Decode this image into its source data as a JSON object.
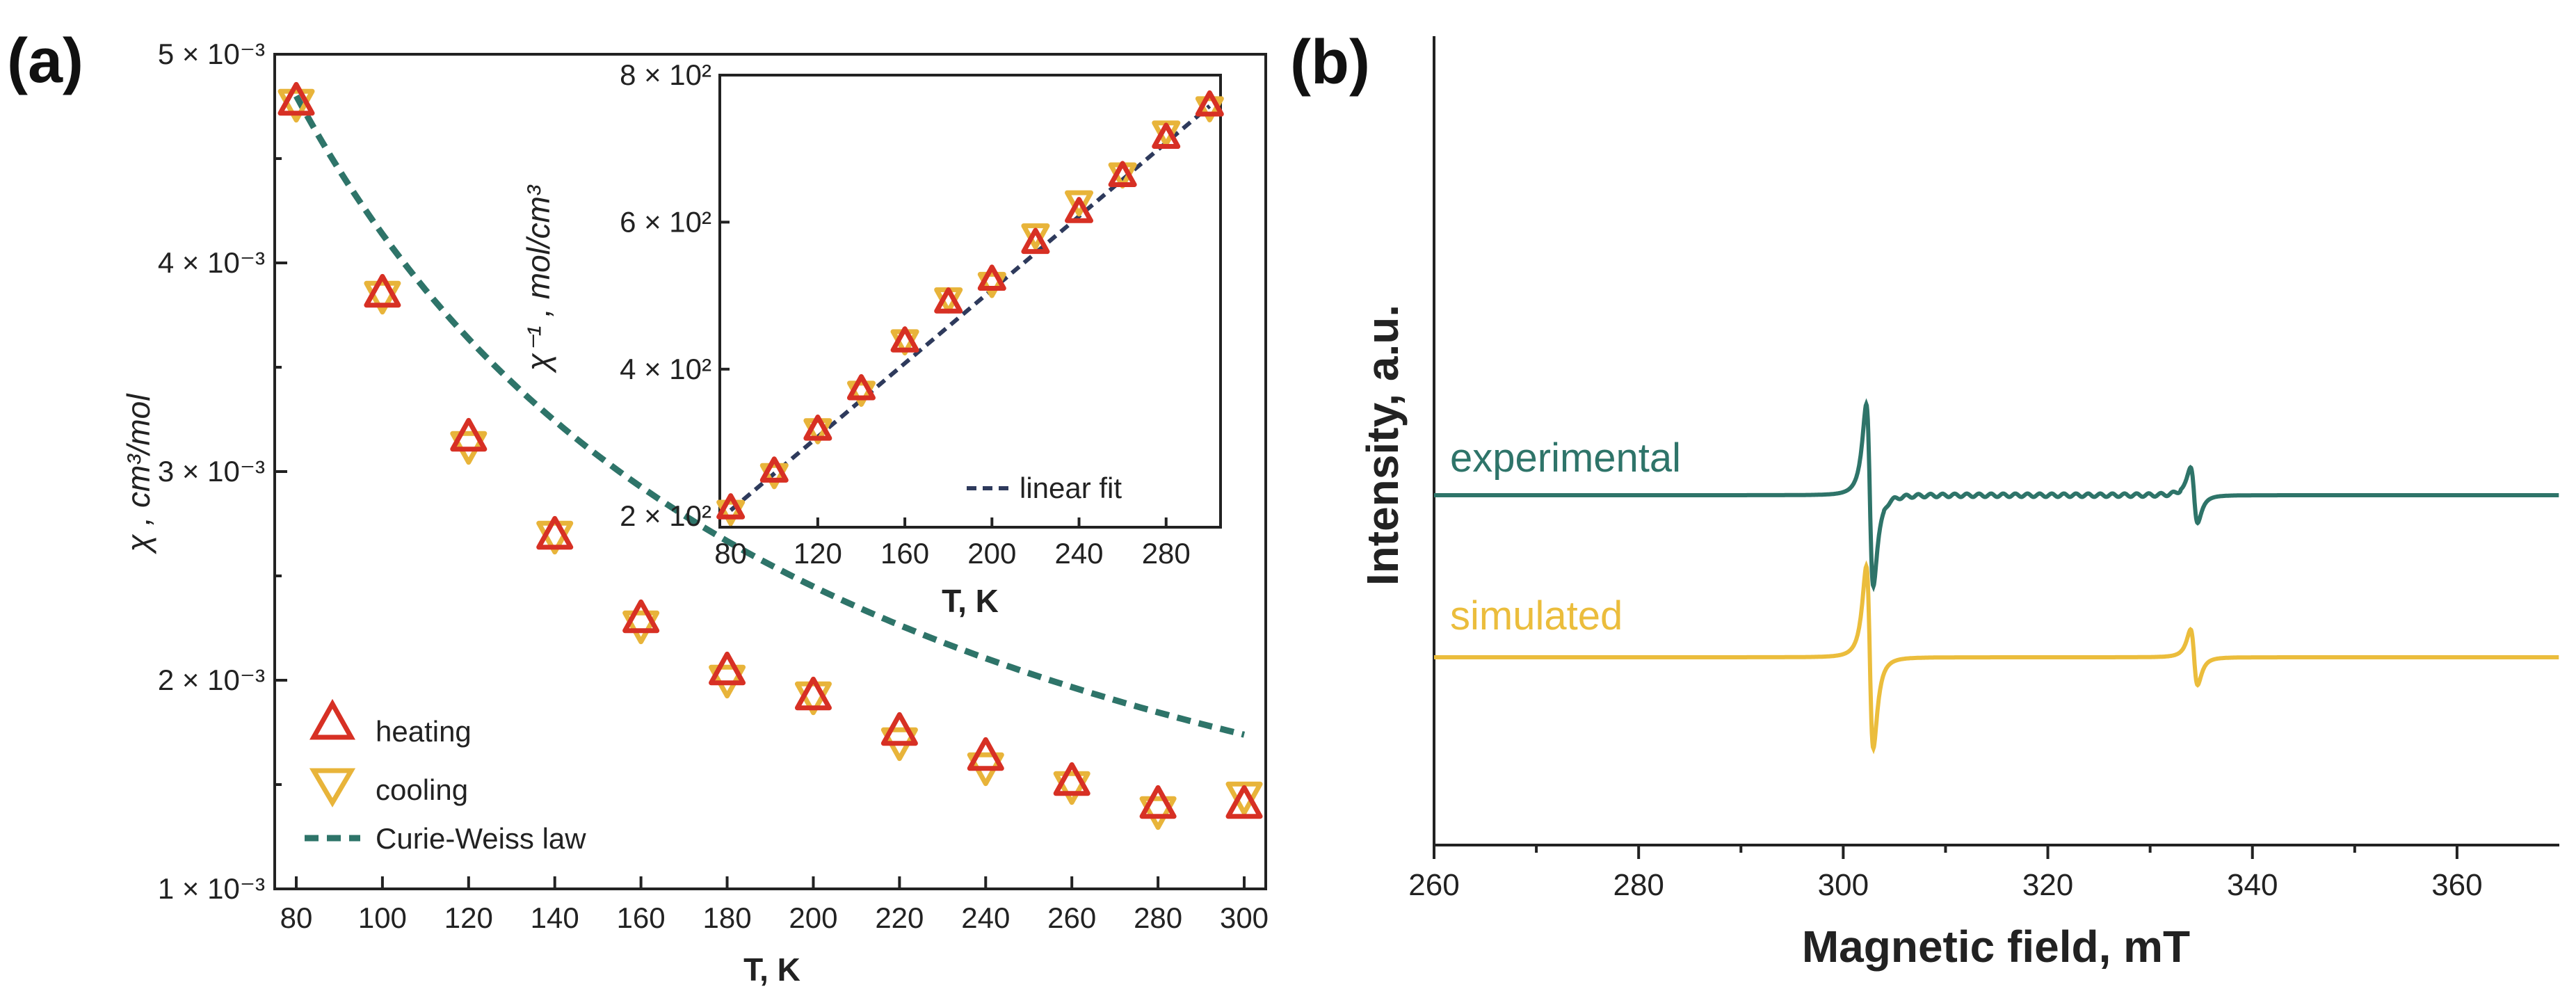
{
  "panels": {
    "a_label": "(a)",
    "b_label": "(b)"
  },
  "colors": {
    "heating": "#d73024",
    "cooling": "#e8b43a",
    "curie_weiss": "#2e7469",
    "linear_fit": "#2e3a5c",
    "experimental": "#2e7469",
    "simulated": "#ebbd3c",
    "axis": "#222222"
  },
  "chart_data": [
    {
      "id": "main",
      "type": "scatter",
      "title": "",
      "xlabel": "T, K",
      "ylabel": "χ , cm³/mol",
      "xlim": [
        75,
        305
      ],
      "ylim": [
        0.001,
        0.005
      ],
      "xticks": [
        80,
        100,
        120,
        140,
        160,
        180,
        200,
        220,
        240,
        260,
        280,
        300
      ],
      "yticks": [
        {
          "value": 0.001,
          "label": "1 × 10⁻³"
        },
        {
          "value": 0.002,
          "label": "2 × 10⁻³"
        },
        {
          "value": 0.003,
          "label": "3 × 10⁻³"
        },
        {
          "value": 0.004,
          "label": "4 × 10⁻³"
        },
        {
          "value": 0.005,
          "label": "5 × 10⁻³"
        }
      ],
      "legend_position": "bottom-left",
      "series": [
        {
          "name": "heating",
          "marker": "triangle-up",
          "x": [
            80,
            100,
            120,
            140,
            160,
            180,
            200,
            220,
            240,
            260,
            280,
            300
          ],
          "y": [
            0.00477,
            0.00385,
            0.00316,
            0.00269,
            0.00229,
            0.00204,
            0.00192,
            0.00175,
            0.00163,
            0.00151,
            0.0014,
            0.0014
          ]
        },
        {
          "name": "cooling",
          "marker": "triangle-down",
          "x": [
            80,
            100,
            120,
            140,
            160,
            180,
            200,
            220,
            240,
            260,
            280,
            300
          ],
          "y": [
            0.00477,
            0.00385,
            0.00313,
            0.0027,
            0.00227,
            0.00201,
            0.00193,
            0.00171,
            0.00159,
            0.0015,
            0.00138,
            0.00145
          ]
        },
        {
          "name": "Curie-Weiss law",
          "style": "dashed",
          "C": 0.6,
          "theta": -45,
          "x_range": [
            80,
            300
          ]
        }
      ]
    },
    {
      "id": "inset",
      "type": "scatter",
      "title": "",
      "xlabel": "T, K",
      "ylabel": "χ⁻¹ , mol/cm³",
      "xlim": [
        75,
        305
      ],
      "ylim": [
        185,
        800
      ],
      "xticks": [
        80,
        120,
        160,
        200,
        240,
        280
      ],
      "yticks": [
        {
          "value": 200,
          "label": "2 × 10²"
        },
        {
          "value": 400,
          "label": "4 × 10²"
        },
        {
          "value": 600,
          "label": "6 × 10²"
        },
        {
          "value": 800,
          "label": "8 × 10²"
        }
      ],
      "legend_position": "bottom-right",
      "series": [
        {
          "name": "heating",
          "marker": "triangle-up",
          "x": [
            80,
            100,
            120,
            140,
            160,
            180,
            200,
            220,
            240,
            260,
            280,
            300
          ],
          "y": [
            210,
            260,
            317,
            372,
            437,
            490,
            521,
            571,
            613,
            662,
            714,
            758
          ]
        },
        {
          "name": "cooling",
          "marker": "triangle-down",
          "x": [
            80,
            100,
            120,
            140,
            160,
            180,
            200,
            220,
            240,
            260,
            280,
            300
          ],
          "y": [
            208,
            258,
            319,
            370,
            440,
            497,
            518,
            584,
            629,
            667,
            724,
            757
          ]
        },
        {
          "name": "linear fit",
          "style": "dashed",
          "x": [
            80,
            300
          ],
          "y": [
            208,
            758
          ]
        }
      ]
    },
    {
      "id": "epr",
      "type": "line",
      "title": "",
      "xlabel": "Magnetic field, mT",
      "ylabel": "Intensity, a.u.",
      "xlim": [
        260,
        370
      ],
      "xticks": [
        260,
        280,
        300,
        320,
        340,
        360
      ],
      "series": [
        {
          "name": "experimental",
          "main_line_mT": 302.6,
          "width_mT": 0.6,
          "main_amplitude": 1.0,
          "minor_line_mT": 334.3,
          "minor_amplitude": 0.09,
          "baseline_offset": 0.6
        },
        {
          "name": "simulated",
          "main_line_mT": 302.6,
          "width_mT": 0.6,
          "main_amplitude": 1.0,
          "minor_line_mT": 334.3,
          "minor_amplitude": 0.09,
          "baseline_offset": 0.0
        }
      ]
    }
  ]
}
